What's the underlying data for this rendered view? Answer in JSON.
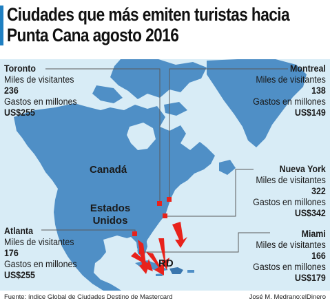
{
  "title": {
    "line1": "Ciudades que más emiten turistas hacia",
    "line2": "Punta Cana agosto 2016"
  },
  "map": {
    "countries": [
      {
        "id": "canada",
        "label": "Canadá"
      },
      {
        "id": "usa",
        "label": "Estados\nUnidos"
      },
      {
        "id": "rd",
        "label": "RD"
      }
    ],
    "cities": [
      {
        "id": "toronto",
        "name": "Toronto",
        "visitors_label": "Miles de visitantes",
        "visitors": "236",
        "spend_label": "Gastos en millones",
        "spend": "US$255"
      },
      {
        "id": "montreal",
        "name": "Montreal",
        "visitors_label": "Miles de visitantes",
        "visitors": "138",
        "spend_label": "Gastos en millones",
        "spend": "US$149"
      },
      {
        "id": "nuevayork",
        "name": "Nueva York",
        "visitors_label": "Miles de visitantes",
        "visitors": "322",
        "spend_label": "Gastos en millones",
        "spend": "US$342"
      },
      {
        "id": "atlanta",
        "name": "Atlanta",
        "visitors_label": "Miles de visitantes",
        "visitors": "176",
        "spend_label": "Gastos en millones",
        "spend": "US$255"
      },
      {
        "id": "miami",
        "name": "Miami",
        "visitors_label": "Miles de visitantes",
        "visitors": "166",
        "spend_label": "Gastos en millones",
        "spend": "US$179"
      }
    ],
    "colors": {
      "ocean": "#d8ecf6",
      "land": "#4f8fc6",
      "land_dark": "#3a76ad",
      "marker": "#e8221b",
      "arrow": "#e8221b",
      "leader": "#5a5a5a"
    }
  },
  "footer": {
    "source": "Fuente: índice Global de Ciudades Destino de Mastercard",
    "credit": "José M. Medrano:elDinero"
  }
}
